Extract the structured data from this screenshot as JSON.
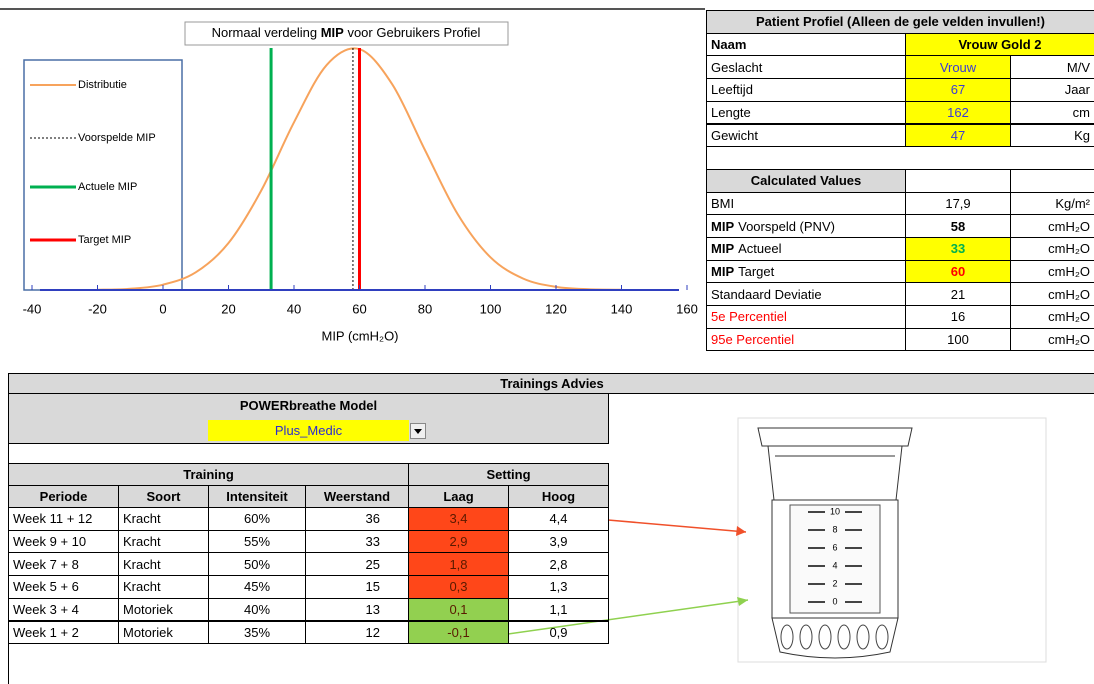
{
  "chart_data": {
    "type": "line",
    "title": {
      "pre": "Normaal verdeling",
      "bold": "MIP",
      "post": "voor Gebruikers Profiel"
    },
    "x_label": "MIP (cmH₂O)",
    "xlim": [
      -40,
      160
    ],
    "xticks": [
      -40,
      -20,
      0,
      20,
      40,
      60,
      80,
      100,
      120,
      140,
      160
    ],
    "ylim": [
      0,
      1
    ],
    "x": [
      -20,
      -10,
      0,
      10,
      20,
      30,
      40,
      50,
      60,
      70,
      80,
      90,
      100,
      110,
      120,
      130,
      140
    ],
    "series": [
      {
        "name": "Distributie",
        "color": "#f7a35c",
        "values": [
          0.001,
          0.005,
          0.022,
          0.073,
          0.194,
          0.411,
          0.693,
          0.93,
          0.995,
          0.85,
          0.578,
          0.313,
          0.135,
          0.047,
          0.013,
          0.003,
          0.001
        ]
      }
    ],
    "markers": [
      {
        "name": "Voorspelde MIP",
        "color": "#000000",
        "dashed": true,
        "value": 58
      },
      {
        "name": "Actuele MIP",
        "color": "#00b050",
        "value": 33
      },
      {
        "name": "Target MIP",
        "color": "#ff0000",
        "value": 60
      }
    ],
    "legend": "left"
  },
  "profile": {
    "title": "Patient Profiel (Alleen de gele velden invullen!)",
    "rows": [
      {
        "label": "Naam",
        "value": "Vrouw Gold 2",
        "label_bold": true,
        "value_bold": true,
        "highlight": true,
        "span": true
      },
      {
        "label": "Geslacht",
        "value": "Vrouw",
        "unit": "M/V",
        "highlight": true,
        "value_color": "#3b3bd6"
      },
      {
        "label": "Leeftijd",
        "value": "67",
        "unit": "Jaar",
        "highlight": true,
        "value_color": "#3b3bd6"
      },
      {
        "label": "Lengte",
        "value": "162",
        "unit": "cm",
        "highlight": true,
        "value_color": "#3b3bd6"
      },
      {
        "label": "Gewicht",
        "value": "47",
        "unit": "Kg",
        "highlight": true,
        "value_color": "#3b3bd6"
      }
    ]
  },
  "calculated": {
    "title": "Calculated Values",
    "rows": [
      {
        "label": "BMI",
        "value": "17,9",
        "unit": "Kg/m²"
      },
      {
        "label_bold": "MIP",
        "label": "Voorspeld (PNV)",
        "value": "58",
        "unit": "cmH₂O",
        "value_bold": true
      },
      {
        "label_bold": "MIP",
        "label": "Actueel",
        "value": "33",
        "unit": "cmH₂O",
        "value_bold": true,
        "highlight": true,
        "value_color": "#00b050"
      },
      {
        "label_bold": "MIP",
        "label": "Target",
        "value": "60",
        "unit": "cmH₂O",
        "value_bold": true,
        "highlight": true,
        "value_color": "#ff0000"
      },
      {
        "label": "Standaard Deviatie",
        "value": "21",
        "unit": "cmH₂O"
      },
      {
        "label": "5e Percentiel",
        "value": "16",
        "unit": "cmH₂O",
        "label_color": "#ff0000"
      },
      {
        "label": "95e Percentiel",
        "value": "100",
        "unit": "cmH₂O",
        "label_color": "#ff0000"
      }
    ]
  },
  "training": {
    "section": "Trainings Advies",
    "model_label": "POWERbreathe Model",
    "model": "Plus_Medic",
    "group_headers": [
      "Training",
      "Setting"
    ],
    "columns": [
      "Periode",
      "Soort",
      "Intensiteit",
      "Weerstand",
      "Laag",
      "Hoog"
    ],
    "rows": [
      [
        "Week 11 + 12",
        "Kracht",
        "60%",
        "36",
        "3,4",
        "4,4"
      ],
      [
        "Week 9 + 10",
        "Kracht",
        "55%",
        "33",
        "2,9",
        "3,9"
      ],
      [
        "Week 7 + 8",
        "Kracht",
        "50%",
        "25",
        "1,8",
        "2,8"
      ],
      [
        "Week 5 + 6",
        "Kracht",
        "45%",
        "15",
        "0,3",
        "1,3"
      ],
      [
        "Week 3 + 4",
        "Motoriek",
        "40%",
        "13",
        "0,1",
        "1,1"
      ],
      [
        "Week 1 + 2",
        "Motoriek",
        "35%",
        "12",
        "-0,1",
        "0,9"
      ]
    ],
    "laag_colors": [
      "#ff4719",
      "#ff4719",
      "#ff4719",
      "#ff4719",
      "#92d050",
      "#92d050"
    ]
  },
  "device": {
    "scale": [
      "10",
      "8",
      "6",
      "4",
      "2",
      "0"
    ]
  }
}
